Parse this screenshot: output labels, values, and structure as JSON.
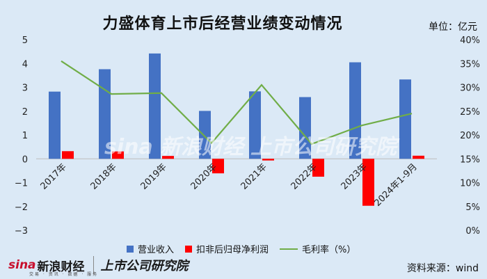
{
  "title": "力盛体育上市后经营业绩变动情况",
  "unit_label": "单位：亿元",
  "source": "资料来源：wind",
  "logos": {
    "sina": "sina",
    "sina_text": "新浪财经",
    "sina_tags": "交易 · 资讯 · 数据 · 服务",
    "lvc": "上市公司研究院"
  },
  "watermarks": [
    "sina 新浪财经",
    "上市公司研究院"
  ],
  "colors": {
    "revenue": "#4472c4",
    "profit": "#ff0000",
    "margin": "#70ad47",
    "background": "#dbe9f6"
  },
  "chart_data": {
    "type": "bar",
    "categories": [
      "2017年",
      "2018年",
      "2019年",
      "2020年",
      "2021年",
      "2022年",
      "2023年",
      "2024年1-9月"
    ],
    "series": [
      {
        "name": "营业收入",
        "type": "bar",
        "axis": "left",
        "values": [
          2.82,
          3.76,
          4.42,
          2.01,
          2.83,
          2.59,
          4.05,
          3.33
        ]
      },
      {
        "name": "扣非后归母净利润",
        "type": "bar",
        "axis": "left",
        "values": [
          0.32,
          0.31,
          0.12,
          -0.61,
          -0.07,
          -0.75,
          -1.97,
          0.13
        ]
      },
      {
        "name": "毛利率（%）",
        "type": "line",
        "axis": "right",
        "values": [
          35.5,
          28.6,
          28.8,
          18.3,
          30.5,
          18.1,
          22.0,
          24.5
        ]
      }
    ],
    "ylim_left": [
      -3,
      5
    ],
    "yticks_left": [
      "−3",
      "−2",
      "−1",
      "0",
      "1",
      "2",
      "3",
      "4",
      "5"
    ],
    "ylim_right": [
      0,
      40
    ],
    "yticks_right": [
      "0%",
      "5%",
      "10%",
      "15%",
      "20%",
      "25%",
      "30%",
      "35%",
      "40%"
    ],
    "legend": "bottom",
    "grid": false
  }
}
